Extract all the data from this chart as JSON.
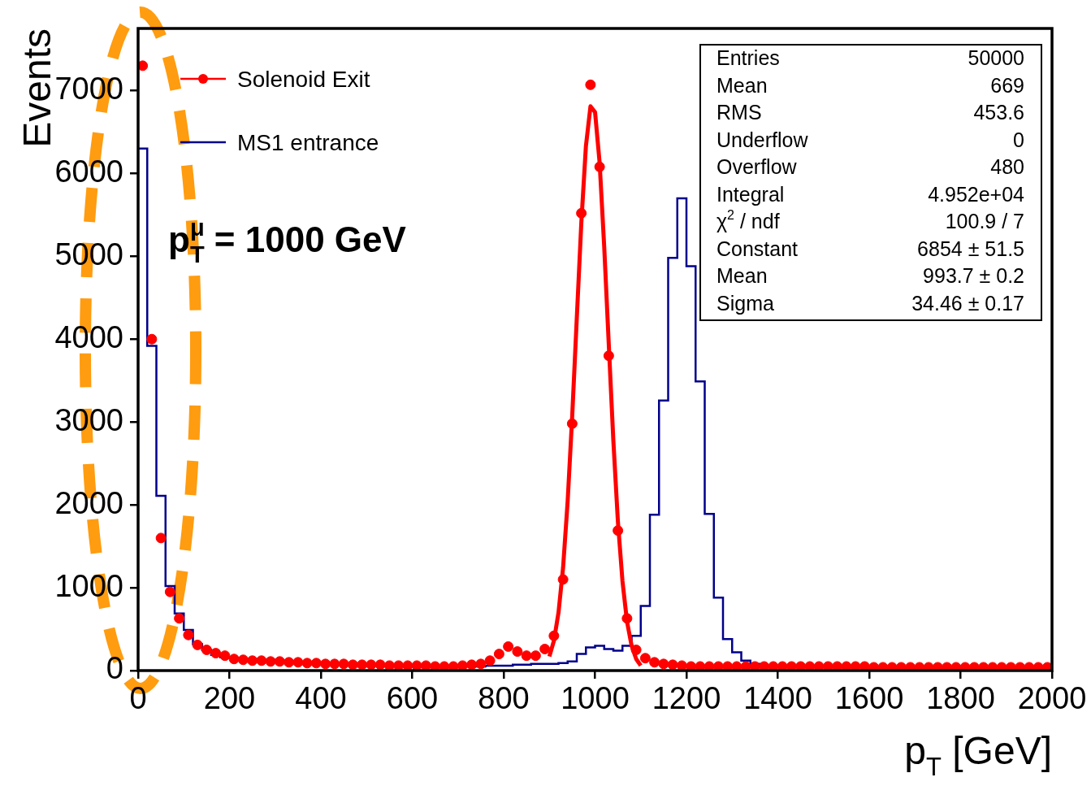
{
  "chart_data": {
    "type": "histogram",
    "xlabel": "p$_{T}$ [GeV]",
    "ylabel": "Events",
    "xlim": [
      0,
      2000
    ],
    "ylim": [
      0,
      7750
    ],
    "xticks": [
      0,
      200,
      400,
      600,
      800,
      1000,
      1200,
      1400,
      1600,
      1800,
      2000
    ],
    "yticks": [
      0,
      1000,
      2000,
      3000,
      4000,
      5000,
      6000,
      7000
    ],
    "legend": "top left",
    "annotations": [
      "p$_{T}$$^{μ}$ = 1000 GeV",
      "Entries",
      "50000",
      "Mean",
      "669",
      "RMS",
      "453.6",
      "Underflow",
      "0",
      "Overflow",
      "480",
      "Integral",
      "4.952e+04",
      "χ$^{2}$ / ndf",
      "100.9 / 7",
      "Constant",
      "6854 ± 51.5",
      "Mean",
      "993.7 ± 0.2",
      "Sigma",
      "34.46 ± 0.17"
    ],
    "series": [
      {
        "name": "Solenoid Exit",
        "type": "scatter",
        "color": "#ff0000",
        "marker": "circle",
        "x": [
          10,
          30,
          50,
          70,
          90,
          110,
          130,
          150,
          170,
          190,
          210,
          230,
          250,
          270,
          290,
          310,
          330,
          350,
          370,
          390,
          410,
          430,
          450,
          470,
          490,
          510,
          530,
          550,
          570,
          590,
          610,
          630,
          650,
          670,
          690,
          710,
          730,
          750,
          770,
          790,
          810,
          830,
          850,
          870,
          890,
          910,
          930,
          950,
          970,
          990,
          1010,
          1030,
          1050,
          1070,
          1090,
          1110,
          1130,
          1150,
          1170,
          1190,
          1210,
          1230,
          1250,
          1270,
          1290,
          1310,
          1330,
          1350,
          1370,
          1390,
          1410,
          1430,
          1450,
          1470,
          1490,
          1510,
          1530,
          1550,
          1570,
          1590,
          1610,
          1630,
          1650,
          1670,
          1690,
          1710,
          1730,
          1750,
          1770,
          1790,
          1810,
          1830,
          1850,
          1870,
          1890,
          1910,
          1930,
          1950,
          1970,
          1990
        ],
        "values": [
          7300,
          4000,
          1600,
          950,
          630,
          430,
          310,
          250,
          210,
          180,
          140,
          130,
          120,
          120,
          110,
          110,
          100,
          100,
          90,
          90,
          80,
          80,
          80,
          70,
          70,
          70,
          70,
          60,
          60,
          60,
          60,
          60,
          50,
          50,
          50,
          60,
          70,
          80,
          120,
          200,
          290,
          230,
          180,
          180,
          260,
          420,
          1100,
          2980,
          5520,
          7070,
          6080,
          3800,
          1690,
          630,
          250,
          150,
          100,
          80,
          70,
          60,
          50,
          50,
          50,
          50,
          50,
          50,
          50,
          50,
          50,
          50,
          50,
          50,
          50,
          50,
          50,
          50,
          50,
          50,
          50,
          50,
          40,
          40,
          40,
          40,
          40,
          40,
          40,
          40,
          40,
          40,
          40,
          40,
          40,
          40,
          40,
          40,
          40,
          40,
          40,
          40
        ]
      },
      {
        "type": "line",
        "color": "#ff0000",
        "x": [
          900,
          910,
          920,
          930,
          940,
          950,
          960,
          970,
          980,
          990,
          1000,
          1010,
          1020,
          1030,
          1040,
          1050,
          1060,
          1070,
          1080,
          1090,
          1100
        ],
        "values": [
          170,
          360,
          700,
          1240,
          2040,
          3070,
          4250,
          5410,
          6330,
          6810,
          6740,
          6130,
          5120,
          3940,
          2780,
          1800,
          1080,
          590,
          300,
          140,
          60
        ]
      },
      {
        "name": "MS1 entrance",
        "color": "#00008b",
        "bins": [
          0,
          20,
          40,
          60,
          80,
          100,
          120,
          140,
          160,
          180,
          200,
          220,
          240,
          260,
          280,
          300,
          320,
          340,
          360,
          380,
          400,
          420,
          440,
          460,
          480,
          500,
          520,
          540,
          560,
          580,
          600,
          620,
          640,
          660,
          680,
          700,
          720,
          740,
          760,
          780,
          800,
          820,
          840,
          860,
          880,
          900,
          920,
          940,
          960,
          980,
          1000,
          1020,
          1040,
          1060,
          1080,
          1100,
          1120,
          1140,
          1160,
          1180,
          1200,
          1220,
          1240,
          1260,
          1280,
          1300,
          1320,
          1340,
          1360,
          1380,
          1400,
          1420,
          1440,
          1460,
          1480,
          1500,
          1520,
          1540,
          1560,
          1580,
          1600,
          1620,
          1640,
          1660,
          1680,
          1700,
          1720,
          1740,
          1760,
          1780,
          1800,
          1820,
          1840,
          1860,
          1880,
          1900,
          1920,
          1940,
          1960,
          1980,
          2000
        ],
        "values": [
          6300,
          3920,
          2110,
          1020,
          690,
          490,
          320,
          250,
          190,
          160,
          150,
          140,
          140,
          130,
          130,
          120,
          110,
          100,
          100,
          90,
          90,
          80,
          80,
          70,
          70,
          60,
          60,
          60,
          60,
          60,
          50,
          50,
          50,
          50,
          50,
          50,
          50,
          50,
          60,
          60,
          60,
          70,
          70,
          80,
          80,
          80,
          90,
          110,
          200,
          280,
          300,
          260,
          240,
          300,
          420,
          780,
          1880,
          3260,
          4980,
          5700,
          4880,
          3490,
          1890,
          880,
          380,
          220,
          120,
          80,
          60,
          60,
          60,
          60,
          50,
          50,
          50,
          50,
          40,
          40,
          40,
          40,
          40,
          40,
          40,
          40,
          40,
          40,
          40,
          40,
          40,
          40,
          30,
          30,
          30,
          30,
          30,
          30,
          30,
          30,
          30,
          30
        ]
      }
    ]
  }
}
